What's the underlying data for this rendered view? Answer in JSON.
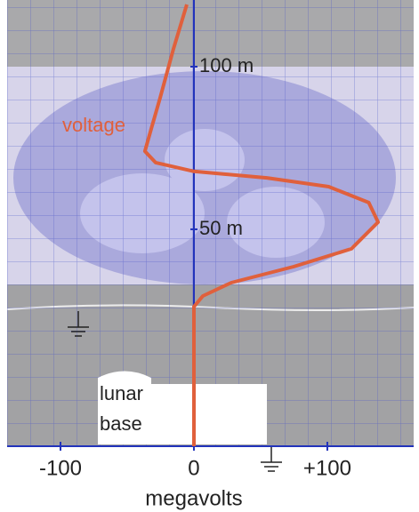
{
  "chart_data": {
    "type": "line",
    "x_label": "megavolts",
    "annotation": "lunar base",
    "series": [
      {
        "name": "voltage",
        "color": "#e0603c",
        "x": [
          0,
          0,
          6.7,
          28,
          74.7,
          118,
          138,
          131,
          101,
          54.7,
          0,
          -28.7,
          -36.7,
          -32,
          -25.3,
          -15.3,
          -5.3
        ],
        "values": [
          -16.7,
          26.2,
          29.5,
          33.6,
          38.5,
          44,
          52.2,
          58.2,
          63.1,
          65.8,
          67.8,
          70.5,
          74,
          80.9,
          90.4,
          105.5,
          119.1
        ]
      }
    ],
    "xlim": [
      -140,
      164.7
    ],
    "ylim": [
      -16.7,
      120.5
    ],
    "xticks": [
      {
        "value": -100,
        "label": "-100"
      },
      0,
      {
        "value": 100,
        "label": "+100"
      }
    ],
    "yticks": [
      {
        "value": 50,
        "label": "50 m"
      },
      {
        "value": 100,
        "label": "100 m"
      }
    ]
  }
}
